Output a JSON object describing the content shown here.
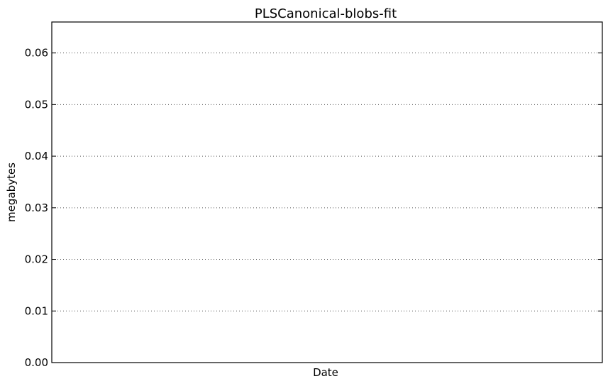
{
  "chart_data": {
    "type": "line",
    "title": "PLSCanonical-blobs-fit",
    "xlabel": "Date",
    "ylabel": "megabytes",
    "ylim": [
      0,
      0.066
    ],
    "yticks": [
      0.0,
      0.01,
      0.02,
      0.03,
      0.04,
      0.05,
      0.06
    ],
    "ytick_labels": [
      "0.00",
      "0.01",
      "0.02",
      "0.03",
      "0.04",
      "0.05",
      "0.06"
    ],
    "xtick_labels": [],
    "grid": "horizontal dotted",
    "series": [],
    "colors": {
      "axis": "#000000",
      "grid": "#555555",
      "background": "#ffffff"
    }
  }
}
